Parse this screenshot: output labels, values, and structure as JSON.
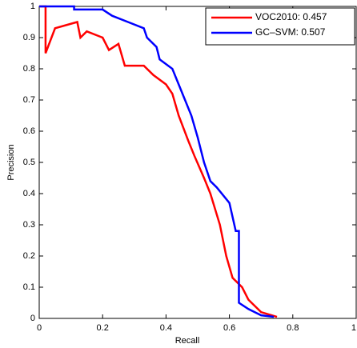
{
  "chart_data": {
    "type": "line",
    "xlabel": "Recall",
    "ylabel": "Precision",
    "xlim": [
      0,
      1
    ],
    "ylim": [
      0,
      1
    ],
    "xticks": [
      0,
      0.2,
      0.4,
      0.6,
      0.8,
      1
    ],
    "yticks": [
      0,
      0.1,
      0.2,
      0.3,
      0.4,
      0.5,
      0.6,
      0.7,
      0.8,
      0.9,
      1
    ],
    "legend": "upper right",
    "series": [
      {
        "name": "VOC2010: 0.457",
        "color": "#ff0000",
        "x": [
          0,
          0.02,
          0.02,
          0.05,
          0.12,
          0.13,
          0.15,
          0.2,
          0.22,
          0.25,
          0.27,
          0.33,
          0.36,
          0.4,
          0.42,
          0.44,
          0.47,
          0.49,
          0.52,
          0.54,
          0.57,
          0.59,
          0.61,
          0.64,
          0.66,
          0.7,
          0.75
        ],
        "values": [
          1,
          1,
          0.85,
          0.93,
          0.95,
          0.9,
          0.92,
          0.9,
          0.86,
          0.88,
          0.81,
          0.81,
          0.78,
          0.75,
          0.72,
          0.65,
          0.57,
          0.52,
          0.45,
          0.4,
          0.3,
          0.2,
          0.13,
          0.1,
          0.06,
          0.02,
          0.005
        ]
      },
      {
        "name": "GC–SVM: 0.507",
        "color": "#0000ff",
        "x": [
          0,
          0.11,
          0.11,
          0.2,
          0.23,
          0.28,
          0.33,
          0.34,
          0.37,
          0.38,
          0.42,
          0.44,
          0.46,
          0.48,
          0.5,
          0.52,
          0.54,
          0.56,
          0.6,
          0.62,
          0.63,
          0.63,
          0.66,
          0.7,
          0.74
        ],
        "values": [
          1,
          1,
          0.99,
          0.99,
          0.97,
          0.95,
          0.93,
          0.9,
          0.87,
          0.83,
          0.8,
          0.75,
          0.7,
          0.65,
          0.58,
          0.5,
          0.44,
          0.42,
          0.37,
          0.28,
          0.28,
          0.05,
          0.03,
          0.01,
          0.005
        ]
      }
    ]
  }
}
